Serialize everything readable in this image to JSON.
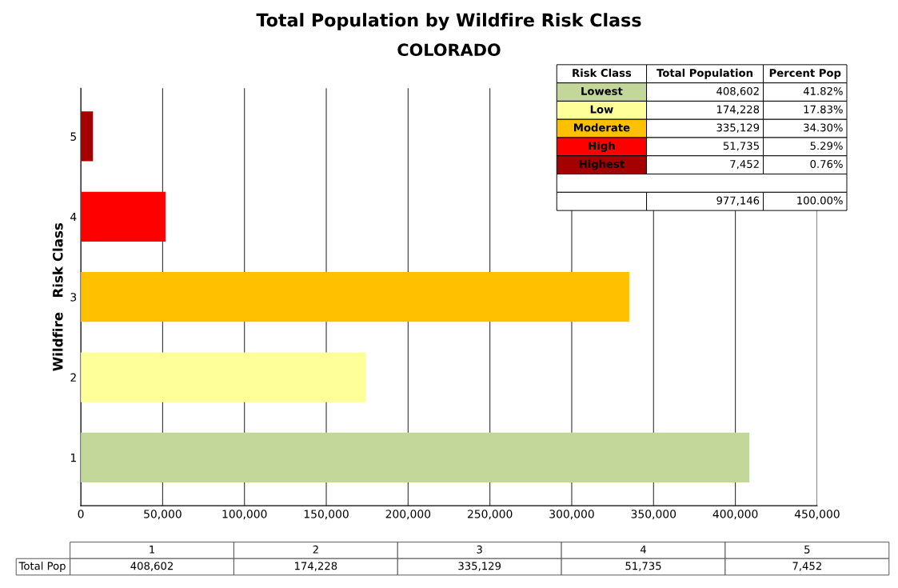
{
  "chart_data": {
    "type": "bar",
    "orientation": "horizontal",
    "title": "Total Population by Wildfire Risk Class",
    "subtitle": "COLORADO",
    "ylabel": "Wildfire   Risk Class",
    "categories": [
      "5",
      "4",
      "3",
      "2",
      "1"
    ],
    "values": [
      7452,
      51735,
      335129,
      174228,
      408602
    ],
    "colors": [
      "#a50000",
      "#ff0000",
      "#ffc000",
      "#ffff99",
      "#c4d79b"
    ],
    "xlim": [
      0,
      450000
    ],
    "xticks": [
      0,
      {
        "value": 50000,
        "label": "50,000"
      },
      {
        "value": 100000,
        "label": "100,000"
      },
      {
        "value": 150000,
        "label": "150,000"
      },
      {
        "value": 200000,
        "label": "200,000"
      },
      {
        "value": 250000,
        "label": "250,000"
      },
      {
        "value": 300000,
        "label": "300,000"
      },
      {
        "value": 350000,
        "label": "350,000"
      },
      {
        "value": 400000,
        "label": "400,000"
      },
      {
        "value": 450000,
        "label": "450,000"
      }
    ],
    "grid": "x",
    "annotations": [
      "Risk Class",
      "Total Population",
      "Percent Pop",
      "Lowest",
      "408,602",
      "41.82%",
      "Low",
      "174,228",
      "17.83%",
      "Moderate",
      "335,129",
      "34.30%",
      "High",
      "51,735",
      "5.29%",
      "Highest",
      "7,452",
      "0.76%",
      "977,146",
      "100.00%",
      "Total Pop",
      "1",
      "2",
      "3",
      "4",
      "5",
      "408,602",
      "174,228",
      "335,129",
      "51,735",
      "7,452"
    ]
  }
}
